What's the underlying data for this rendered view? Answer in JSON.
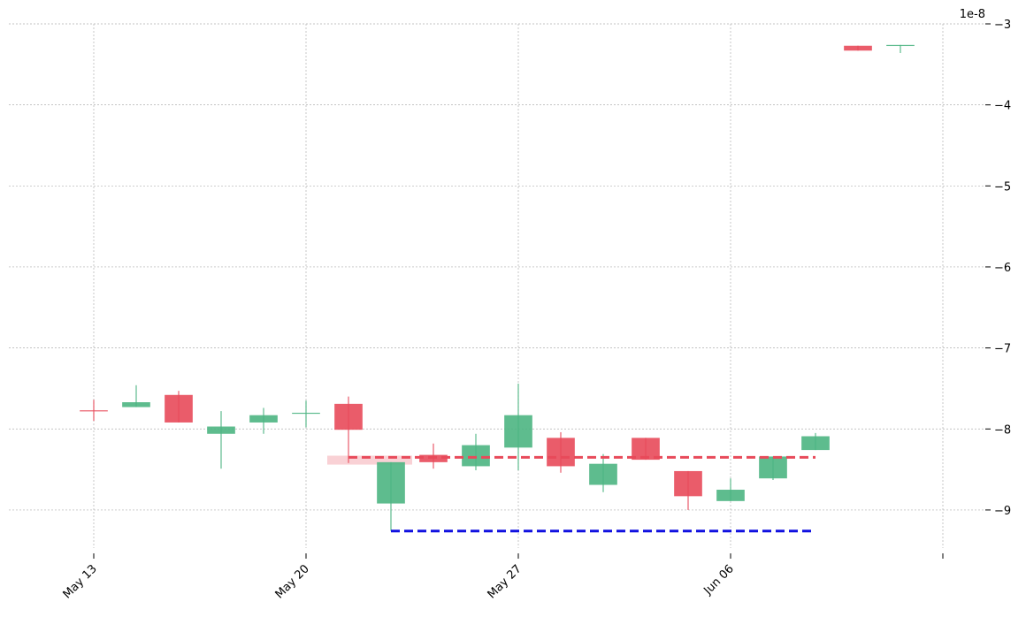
{
  "chart_data": {
    "type": "candlestick",
    "offset_label": "1e-8",
    "categories": [
      "May 13",
      null,
      null,
      null,
      null,
      "May 20",
      null,
      null,
      null,
      null,
      "May 27",
      null,
      null,
      null,
      null,
      "Jun 06",
      null,
      null,
      null,
      null
    ],
    "open": [
      -7.77,
      -7.73,
      -7.58,
      -8.06,
      -7.92,
      -7.81,
      -7.69,
      -8.92,
      -8.32,
      -8.46,
      -8.23,
      -8.11,
      -8.69,
      -8.11,
      -8.52,
      -8.89,
      -8.61,
      -8.26,
      -3.27,
      -3.27
    ],
    "high": [
      -7.64,
      -7.46,
      -7.53,
      -7.78,
      -7.74,
      -7.65,
      -7.6,
      -8.41,
      -8.18,
      -8.06,
      -7.44,
      -8.04,
      -8.31,
      -8.11,
      -8.52,
      -8.61,
      -8.34,
      -8.05,
      -3.27,
      -3.26
    ],
    "low": [
      -7.9,
      -7.73,
      -7.92,
      -8.49,
      -8.06,
      -7.98,
      -8.42,
      -9.26,
      -8.49,
      -8.51,
      -8.51,
      -8.54,
      -8.78,
      -8.38,
      -9.0,
      -8.89,
      -8.63,
      -8.26,
      -3.33,
      -3.36
    ],
    "close": [
      -7.78,
      -7.67,
      -7.92,
      -7.97,
      -7.83,
      -7.8,
      -8.01,
      -8.41,
      -8.41,
      -8.2,
      -7.83,
      -8.46,
      -8.43,
      -8.38,
      -8.83,
      -8.75,
      -8.34,
      -8.09,
      -3.33,
      -3.26
    ],
    "up_color": "#4cb582",
    "down_color": "#e84a5a",
    "xlim": [
      -2,
      21
    ],
    "xticks": [
      {
        "value": 0,
        "label": "May 13"
      },
      {
        "value": 5,
        "label": "May 20"
      },
      {
        "value": 10,
        "label": "May 27"
      },
      {
        "value": 15,
        "label": "Jun 06"
      },
      {
        "value": 20,
        "label": null
      }
    ],
    "ylim": [
      -9.47,
      -3
    ],
    "yticks": [
      {
        "value": -3,
        "label": "−3"
      },
      {
        "value": -4,
        "label": "−4"
      },
      {
        "value": -5,
        "label": "−5"
      },
      {
        "value": -6,
        "label": "−6"
      },
      {
        "value": -7,
        "label": "−7"
      },
      {
        "value": -8,
        "label": "−8"
      },
      {
        "value": -9,
        "label": "−9"
      }
    ],
    "grid": true,
    "hlines": [
      {
        "value": -8.35,
        "from": 6,
        "to": 17,
        "color": "#e84a5a"
      },
      {
        "value": -9.26,
        "from": 7,
        "to": 17,
        "color": "#1010e0"
      }
    ],
    "zones": [
      {
        "low": -8.44,
        "high": -8.33,
        "from": 5.5,
        "to": 7.5,
        "color": "#f7c5ca"
      }
    ]
  }
}
